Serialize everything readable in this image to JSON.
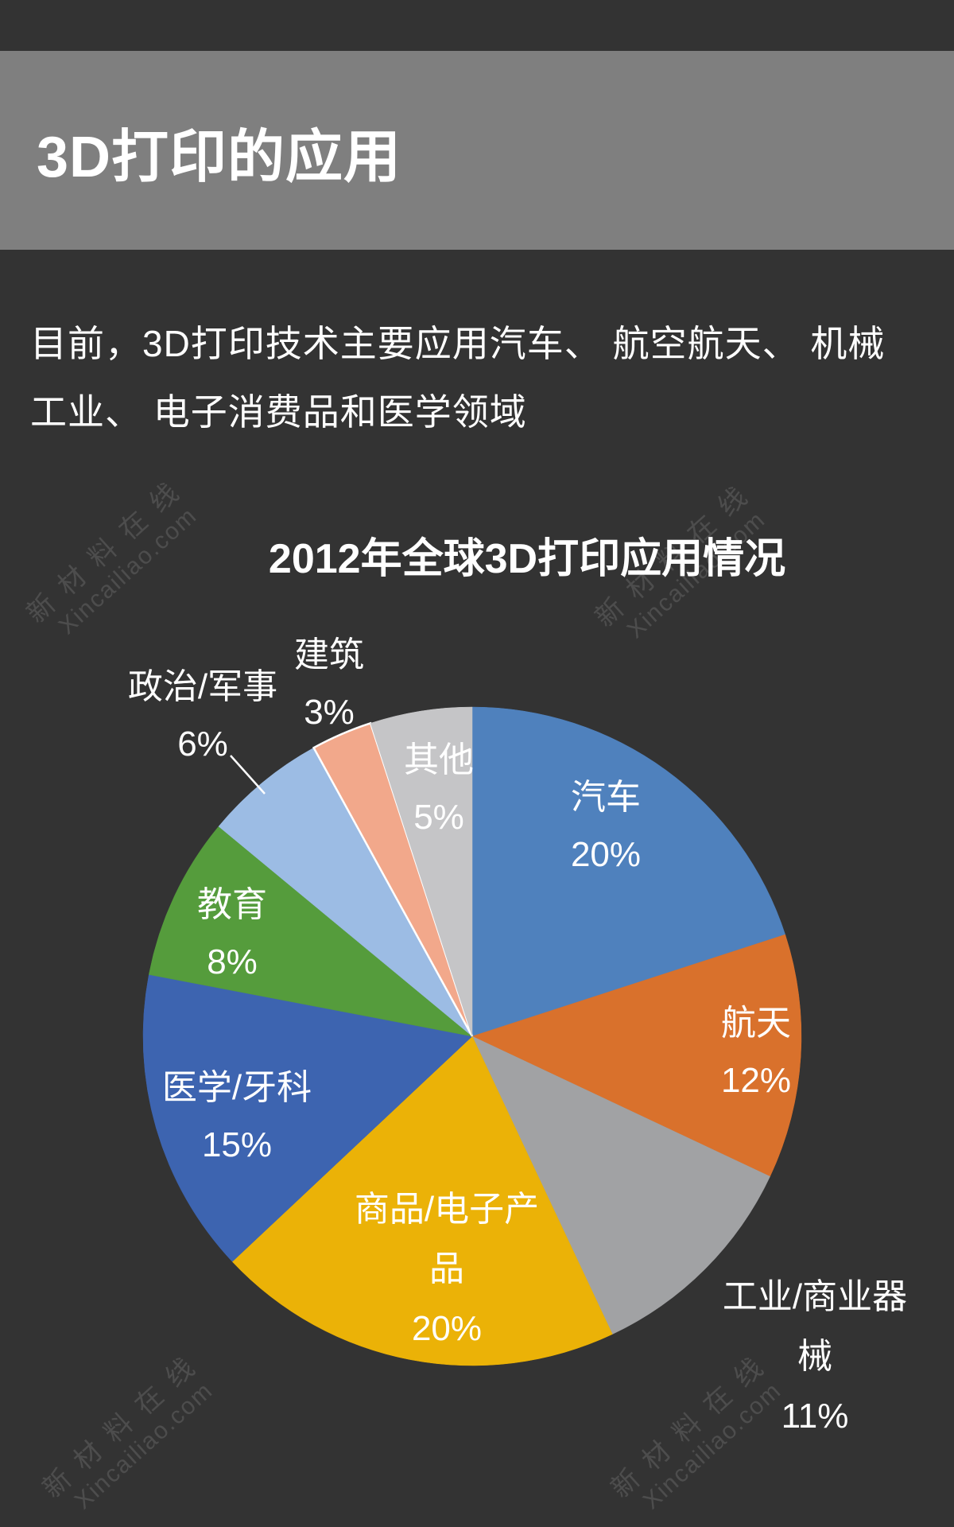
{
  "header": {
    "title": "3D打印的应用"
  },
  "intro": {
    "line1": "目前，3D打印技术主要应用汽车、 航空航天、 机械",
    "line2": "工业、 电子消费品和医学领域"
  },
  "watermark": {
    "cn": "新材料在线",
    "en": "Xincailiao.com"
  },
  "chart_data": {
    "type": "pie",
    "title": "2012年全球3D打印应用情况",
    "start_angle_deg": 0,
    "direction": "clockwise",
    "legend": "none",
    "background": "#333333",
    "label_color": "#ffffff",
    "slices": [
      {
        "label": "汽车",
        "value": 20,
        "pct": "20%",
        "color": "#4F81BD"
      },
      {
        "label": "航天",
        "value": 12,
        "pct": "12%",
        "color": "#D9712C"
      },
      {
        "label": "工业/商业器械",
        "value": 11,
        "pct": "11%",
        "color": "#A1A2A4"
      },
      {
        "label": "商品/电子产品",
        "value": 20,
        "pct": "20%",
        "color": "#EBB207"
      },
      {
        "label": "医学/牙科",
        "value": 15,
        "pct": "15%",
        "color": "#3D64B0"
      },
      {
        "label": "教育",
        "value": 8,
        "pct": "8%",
        "color": "#559C3C"
      },
      {
        "label": "政治/军事",
        "value": 6,
        "pct": "6%",
        "color": "#9CBCE4"
      },
      {
        "label": "建筑",
        "value": 3,
        "pct": "3%",
        "color": "#F2A88B",
        "stroke": "#FFFFFF"
      },
      {
        "label": "其他",
        "value": 5,
        "pct": "5%",
        "color": "#C5C5C7"
      }
    ]
  }
}
